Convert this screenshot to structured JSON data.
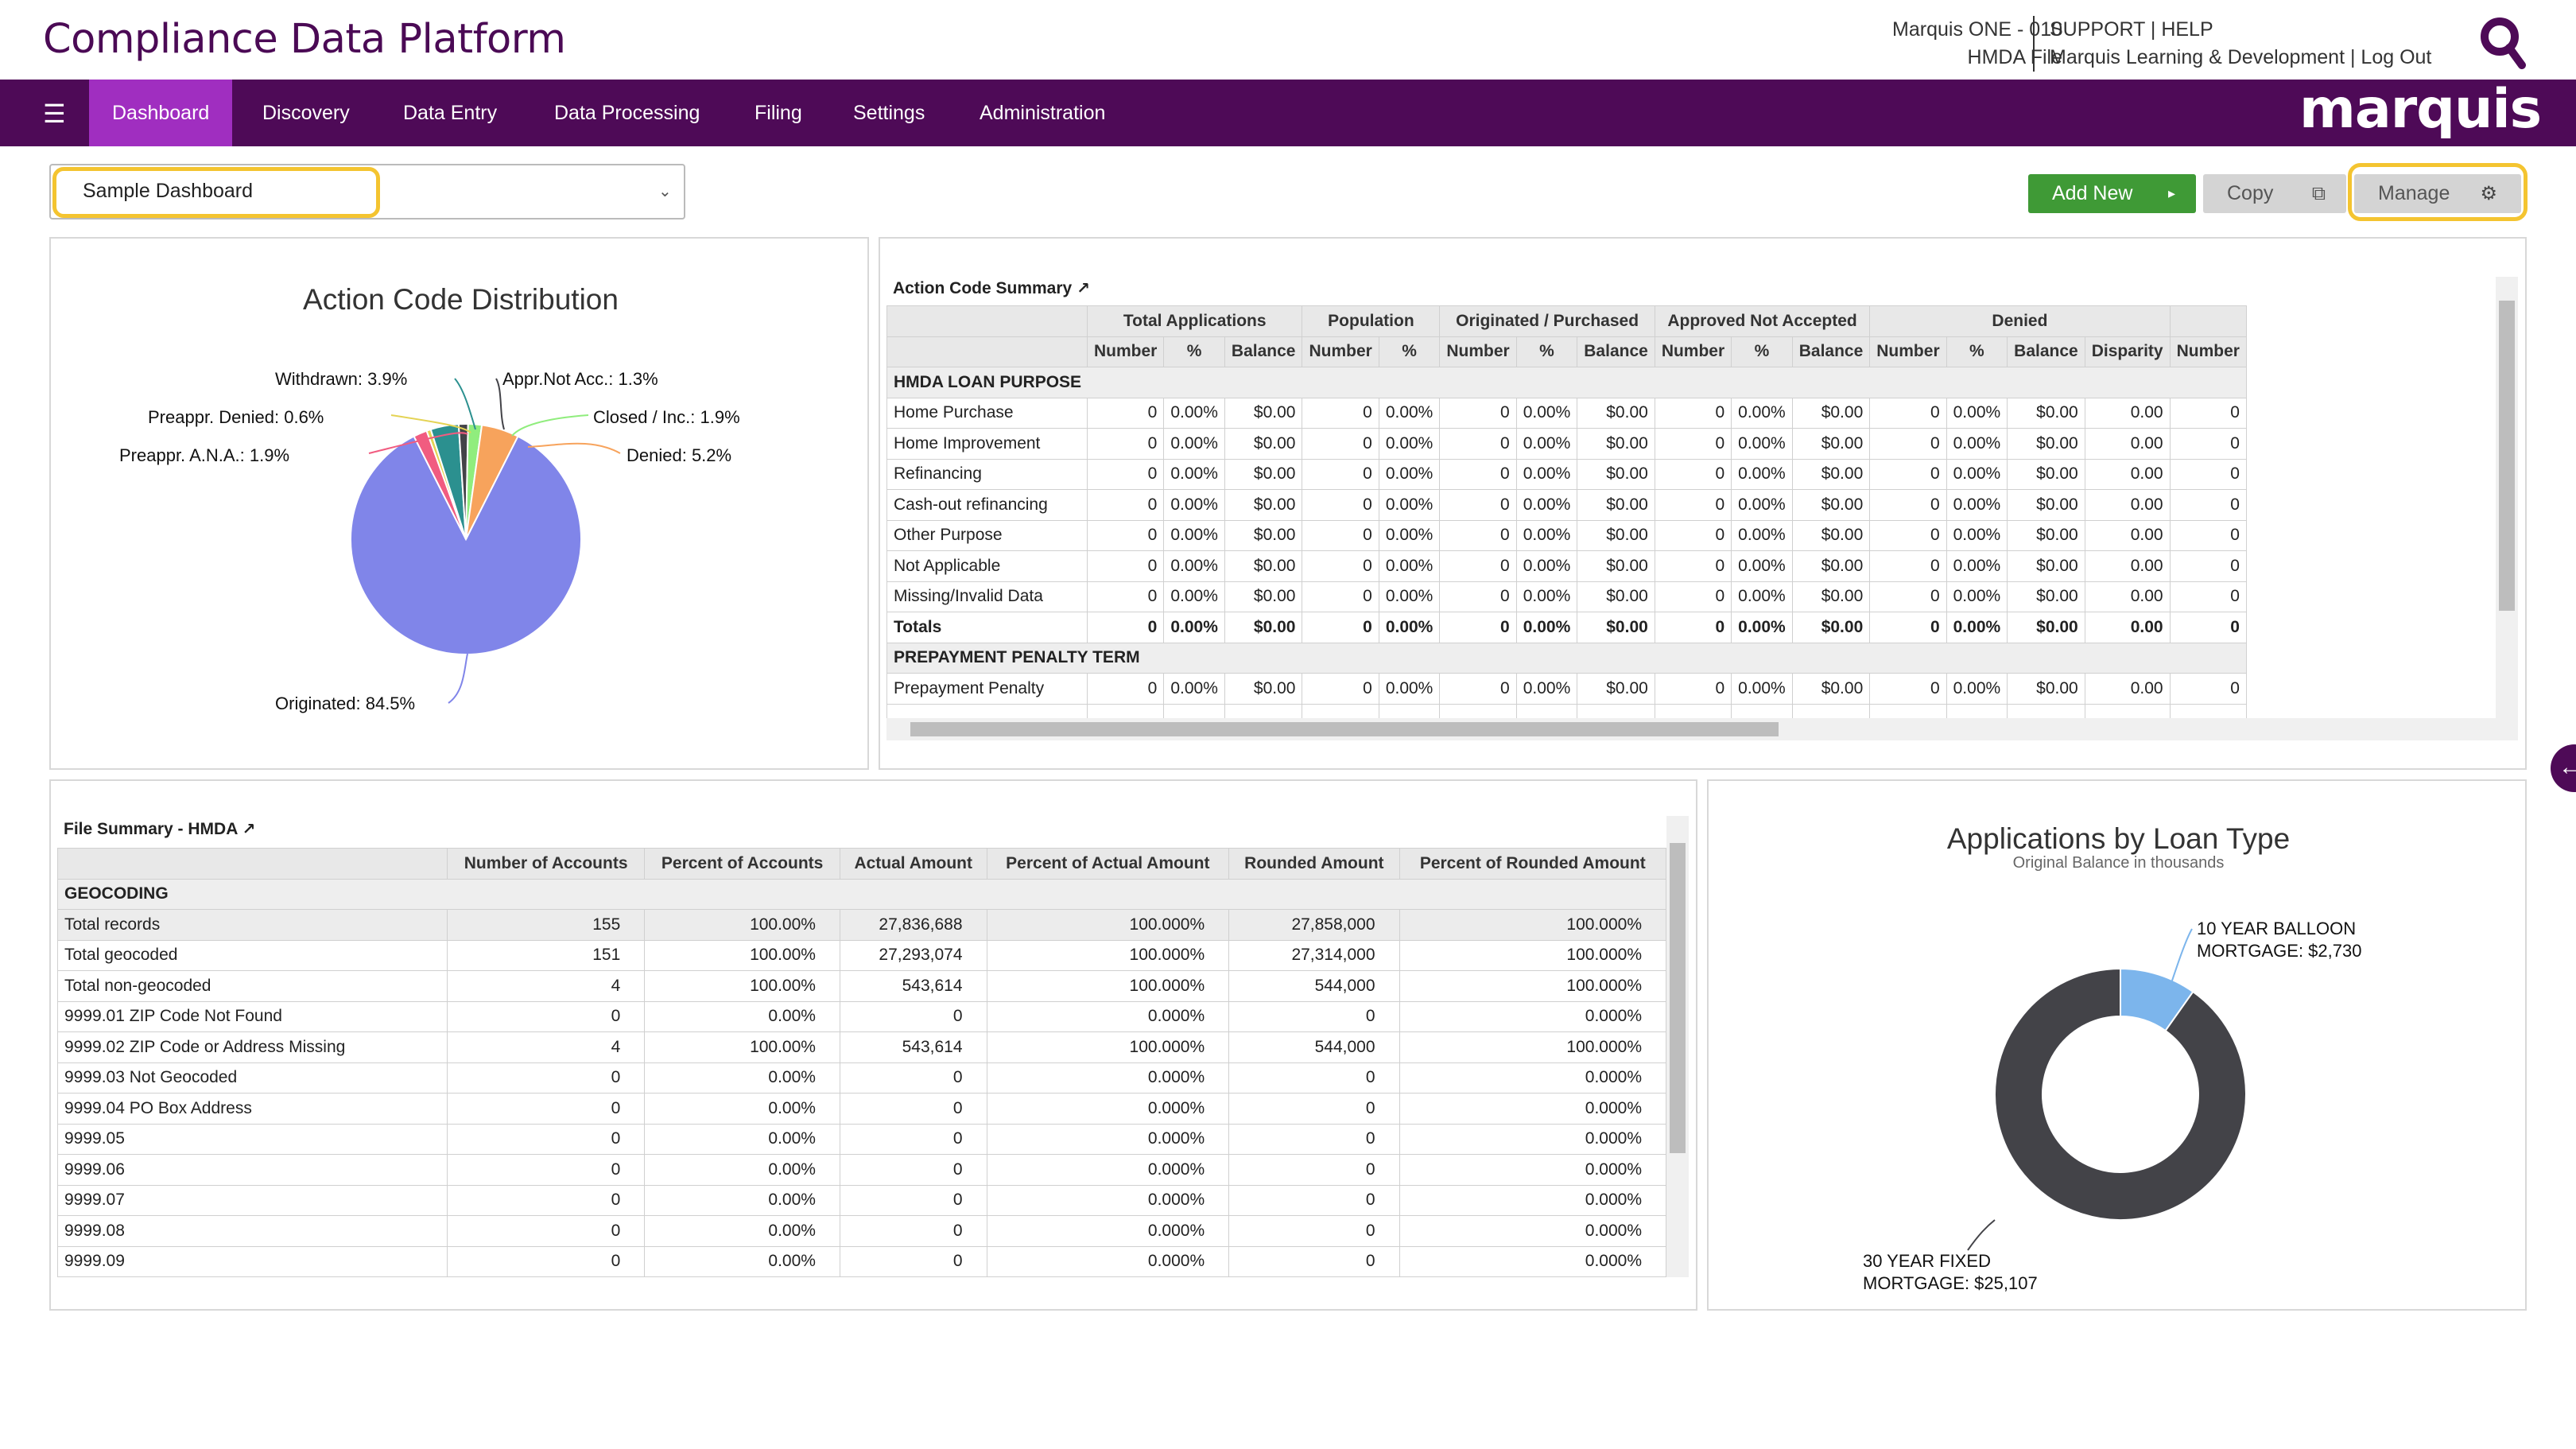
{
  "header": {
    "app_title": "Compliance Data Platform",
    "institution_line1": "Marquis ONE - 010",
    "institution_line2": "HMDA File",
    "links_line1": "SUPPORT | HELP",
    "links_line2": "Marquis Learning & Development | Log Out",
    "brand": "marquis"
  },
  "nav": {
    "menu_icon": "hamburger-icon",
    "items": [
      {
        "label": "Dashboard",
        "active": true
      },
      {
        "label": "Discovery"
      },
      {
        "label": "Data Entry"
      },
      {
        "label": "Data Processing"
      },
      {
        "label": "Filing"
      },
      {
        "label": "Settings"
      },
      {
        "label": "Administration"
      }
    ]
  },
  "toolbar": {
    "dashboard_select": "Sample Dashboard",
    "add_new": "Add New",
    "copy": "Copy",
    "manage": "Manage",
    "highlight_color": "#f4c430"
  },
  "pie": {
    "title": "Action Code Distribution",
    "chart_data": {
      "type": "pie",
      "title": "Action Code Distribution",
      "slices": [
        {
          "label": "Originated: 84.5%",
          "value": 84.5,
          "color": "#8085e9"
        },
        {
          "label": "Preappr. A.N.A.: 1.9%",
          "value": 1.9,
          "color": "#f15c80"
        },
        {
          "label": "Preappr. Denied: 0.6%",
          "value": 0.6,
          "color": "#e4d354"
        },
        {
          "label": "Withdrawn: 3.9%",
          "value": 3.9,
          "color": "#2b908f"
        },
        {
          "label": "Appr.Not Acc.: 1.3%",
          "value": 1.3,
          "color": "#434348"
        },
        {
          "label": "Closed / Inc.: 1.9%",
          "value": 1.9,
          "color": "#90ed7d"
        },
        {
          "label": "Denied: 5.2%",
          "value": 5.2,
          "color": "#f7a35c"
        }
      ]
    }
  },
  "action_summary": {
    "title": "Action Code Summary",
    "groups": [
      "Total Applications",
      "Population",
      "Originated / Purchased",
      "Approved Not Accepted",
      "Denied"
    ],
    "subheaders": [
      "Number",
      "%",
      "Balance",
      "Number",
      "%",
      "Number",
      "%",
      "Balance",
      "Number",
      "%",
      "Balance",
      "Number",
      "%",
      "Balance",
      "Disparity",
      "Number"
    ],
    "sections": [
      {
        "name": "HMDA LOAN PURPOSE",
        "rows": [
          {
            "label": "Home Purchase"
          },
          {
            "label": "Home Improvement"
          },
          {
            "label": "Refinancing"
          },
          {
            "label": "Cash-out refinancing"
          },
          {
            "label": "Other Purpose"
          },
          {
            "label": "Not Applicable"
          },
          {
            "label": "Missing/Invalid Data"
          },
          {
            "label": "Totals",
            "total": true
          }
        ]
      },
      {
        "name": "PREPAYMENT PENALTY TERM",
        "rows": [
          {
            "label": "Prepayment Penalty"
          }
        ]
      }
    ],
    "row_values": [
      "0",
      "0.00%",
      "$0.00",
      "0",
      "0.00%",
      "0",
      "0.00%",
      "$0.00",
      "0",
      "0.00%",
      "$0.00",
      "0",
      "0.00%",
      "$0.00",
      "0.00",
      "0"
    ]
  },
  "file_summary": {
    "title": "File Summary - HMDA",
    "headers": [
      "",
      "Number of Accounts",
      "Percent of Accounts",
      "Actual Amount",
      "Percent of Actual Amount",
      "Rounded Amount",
      "Percent of Rounded Amount"
    ],
    "section": "GEOCODING",
    "rows": [
      [
        "Total records",
        "155",
        "100.00%",
        "27,836,688",
        "100.000%",
        "27,858,000",
        "100.000%"
      ],
      [
        "Total geocoded",
        "151",
        "100.00%",
        "27,293,074",
        "100.000%",
        "27,314,000",
        "100.000%"
      ],
      [
        "Total non-geocoded",
        "4",
        "100.00%",
        "543,614",
        "100.000%",
        "544,000",
        "100.000%"
      ],
      [
        "9999.01 ZIP Code Not Found",
        "0",
        "0.00%",
        "0",
        "0.000%",
        "0",
        "0.000%"
      ],
      [
        "9999.02 ZIP Code or Address Missing",
        "4",
        "100.00%",
        "543,614",
        "100.000%",
        "544,000",
        "100.000%"
      ],
      [
        "9999.03 Not Geocoded",
        "0",
        "0.00%",
        "0",
        "0.000%",
        "0",
        "0.000%"
      ],
      [
        "9999.04 PO Box Address",
        "0",
        "0.00%",
        "0",
        "0.000%",
        "0",
        "0.000%"
      ],
      [
        "9999.05",
        "0",
        "0.00%",
        "0",
        "0.000%",
        "0",
        "0.000%"
      ],
      [
        "9999.06",
        "0",
        "0.00%",
        "0",
        "0.000%",
        "0",
        "0.000%"
      ],
      [
        "9999.07",
        "0",
        "0.00%",
        "0",
        "0.000%",
        "0",
        "0.000%"
      ],
      [
        "9999.08",
        "0",
        "0.00%",
        "0",
        "0.000%",
        "0",
        "0.000%"
      ],
      [
        "9999.09",
        "0",
        "0.00%",
        "0",
        "0.000%",
        "0",
        "0.000%"
      ]
    ]
  },
  "donut": {
    "title": "Applications by Loan Type",
    "subtitle": "Original Balance in thousands",
    "chart_data": {
      "type": "pie",
      "title": "Applications by Loan Type",
      "subtitle": "Original Balance in thousands",
      "slices": [
        {
          "label_line1": "10 YEAR BALLOON",
          "label_line2": "MORTGAGE: $2,730",
          "value": 2730,
          "color": "#7cb5ec"
        },
        {
          "label_line1": "30 YEAR FIXED",
          "label_line2": "MORTGAGE: $25,107",
          "value": 25107,
          "color": "#434348"
        }
      ]
    }
  }
}
